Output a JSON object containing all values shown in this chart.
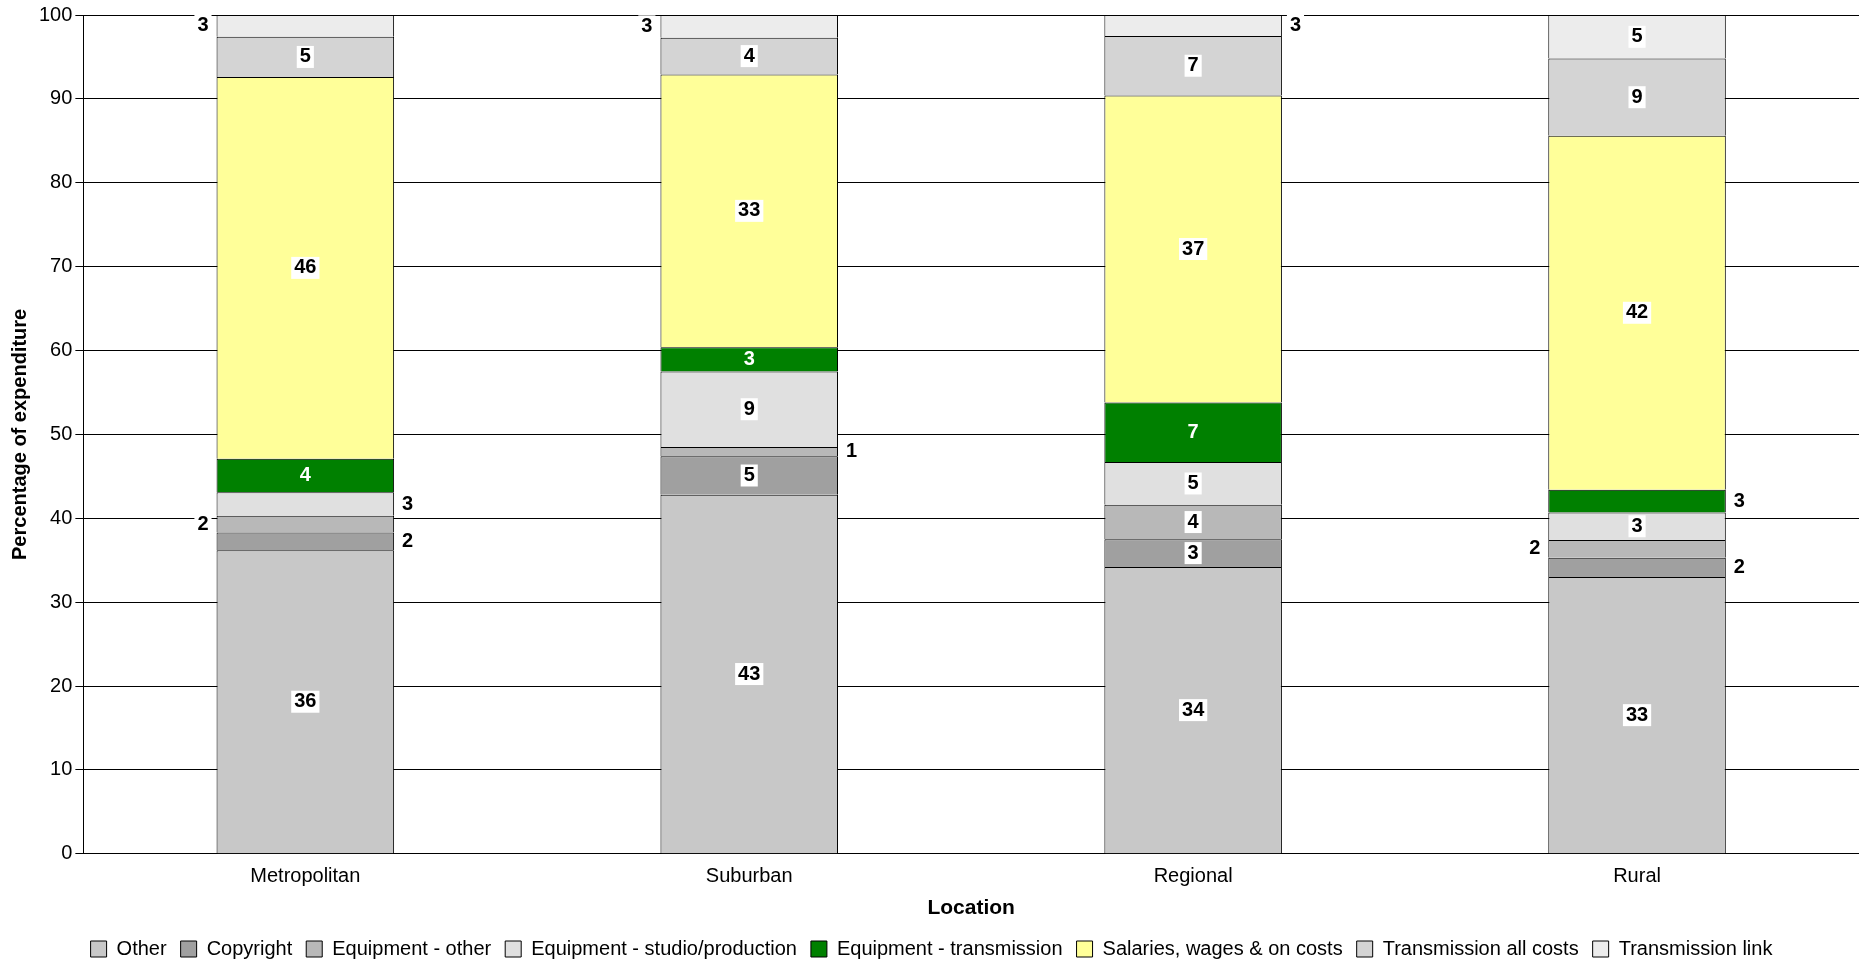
{
  "chart_data": {
    "type": "bar",
    "stacked": true,
    "xlabel": "Location",
    "ylabel": "Percentage of expenditure",
    "categories": [
      "Metropolitan",
      "Suburban",
      "Regional",
      "Rural"
    ],
    "ylim": [
      0,
      100
    ],
    "yticks": [
      0,
      10,
      20,
      30,
      40,
      50,
      60,
      70,
      80,
      90,
      100
    ],
    "grid": "y",
    "legend": "bottom",
    "series": [
      {
        "name": "Other",
        "color": "#c8c8c8",
        "values": [
          36.2,
          42.8,
          34.2,
          33.0
        ],
        "value_labels": [
          "36",
          "43",
          "34",
          "33"
        ]
      },
      {
        "name": "Copyright",
        "color": "#a0a0a0",
        "values": [
          2.1,
          4.6,
          3.3,
          2.3
        ],
        "value_labels": [
          "2",
          "5",
          "3",
          "2"
        ]
      },
      {
        "name": "Equipment - other",
        "color": "#b8b8b8",
        "values": [
          2.0,
          1.1,
          4.1,
          2.1
        ],
        "value_labels": [
          "2",
          "1",
          "4",
          "2"
        ]
      },
      {
        "name": "Equipment - studio/production",
        "color": "#e0e0e0",
        "values": [
          2.8,
          9.0,
          5.1,
          3.3
        ],
        "value_labels": [
          "3",
          "9",
          "5",
          "3"
        ]
      },
      {
        "name": "Equipment - transmission",
        "color": "#008000",
        "values": [
          4.0,
          2.9,
          7.1,
          2.7
        ],
        "value_labels": [
          "4",
          "3",
          "7",
          "3"
        ]
      },
      {
        "name": "Salaries, wages & on costs",
        "color": "#ffff99",
        "values": [
          45.5,
          32.5,
          36.6,
          42.2
        ],
        "value_labels": [
          "46",
          "33",
          "37",
          "42"
        ]
      },
      {
        "name": "Transmission all costs",
        "color": "#d4d4d4",
        "values": [
          4.8,
          4.4,
          7.1,
          9.2
        ],
        "value_labels": [
          "5",
          "4",
          "7",
          "9"
        ]
      },
      {
        "name": "Transmission link",
        "color": "#ececec",
        "values": [
          2.6,
          2.7,
          2.5,
          5.2
        ],
        "value_labels": [
          "3",
          "3",
          "3",
          "5"
        ]
      }
    ]
  }
}
